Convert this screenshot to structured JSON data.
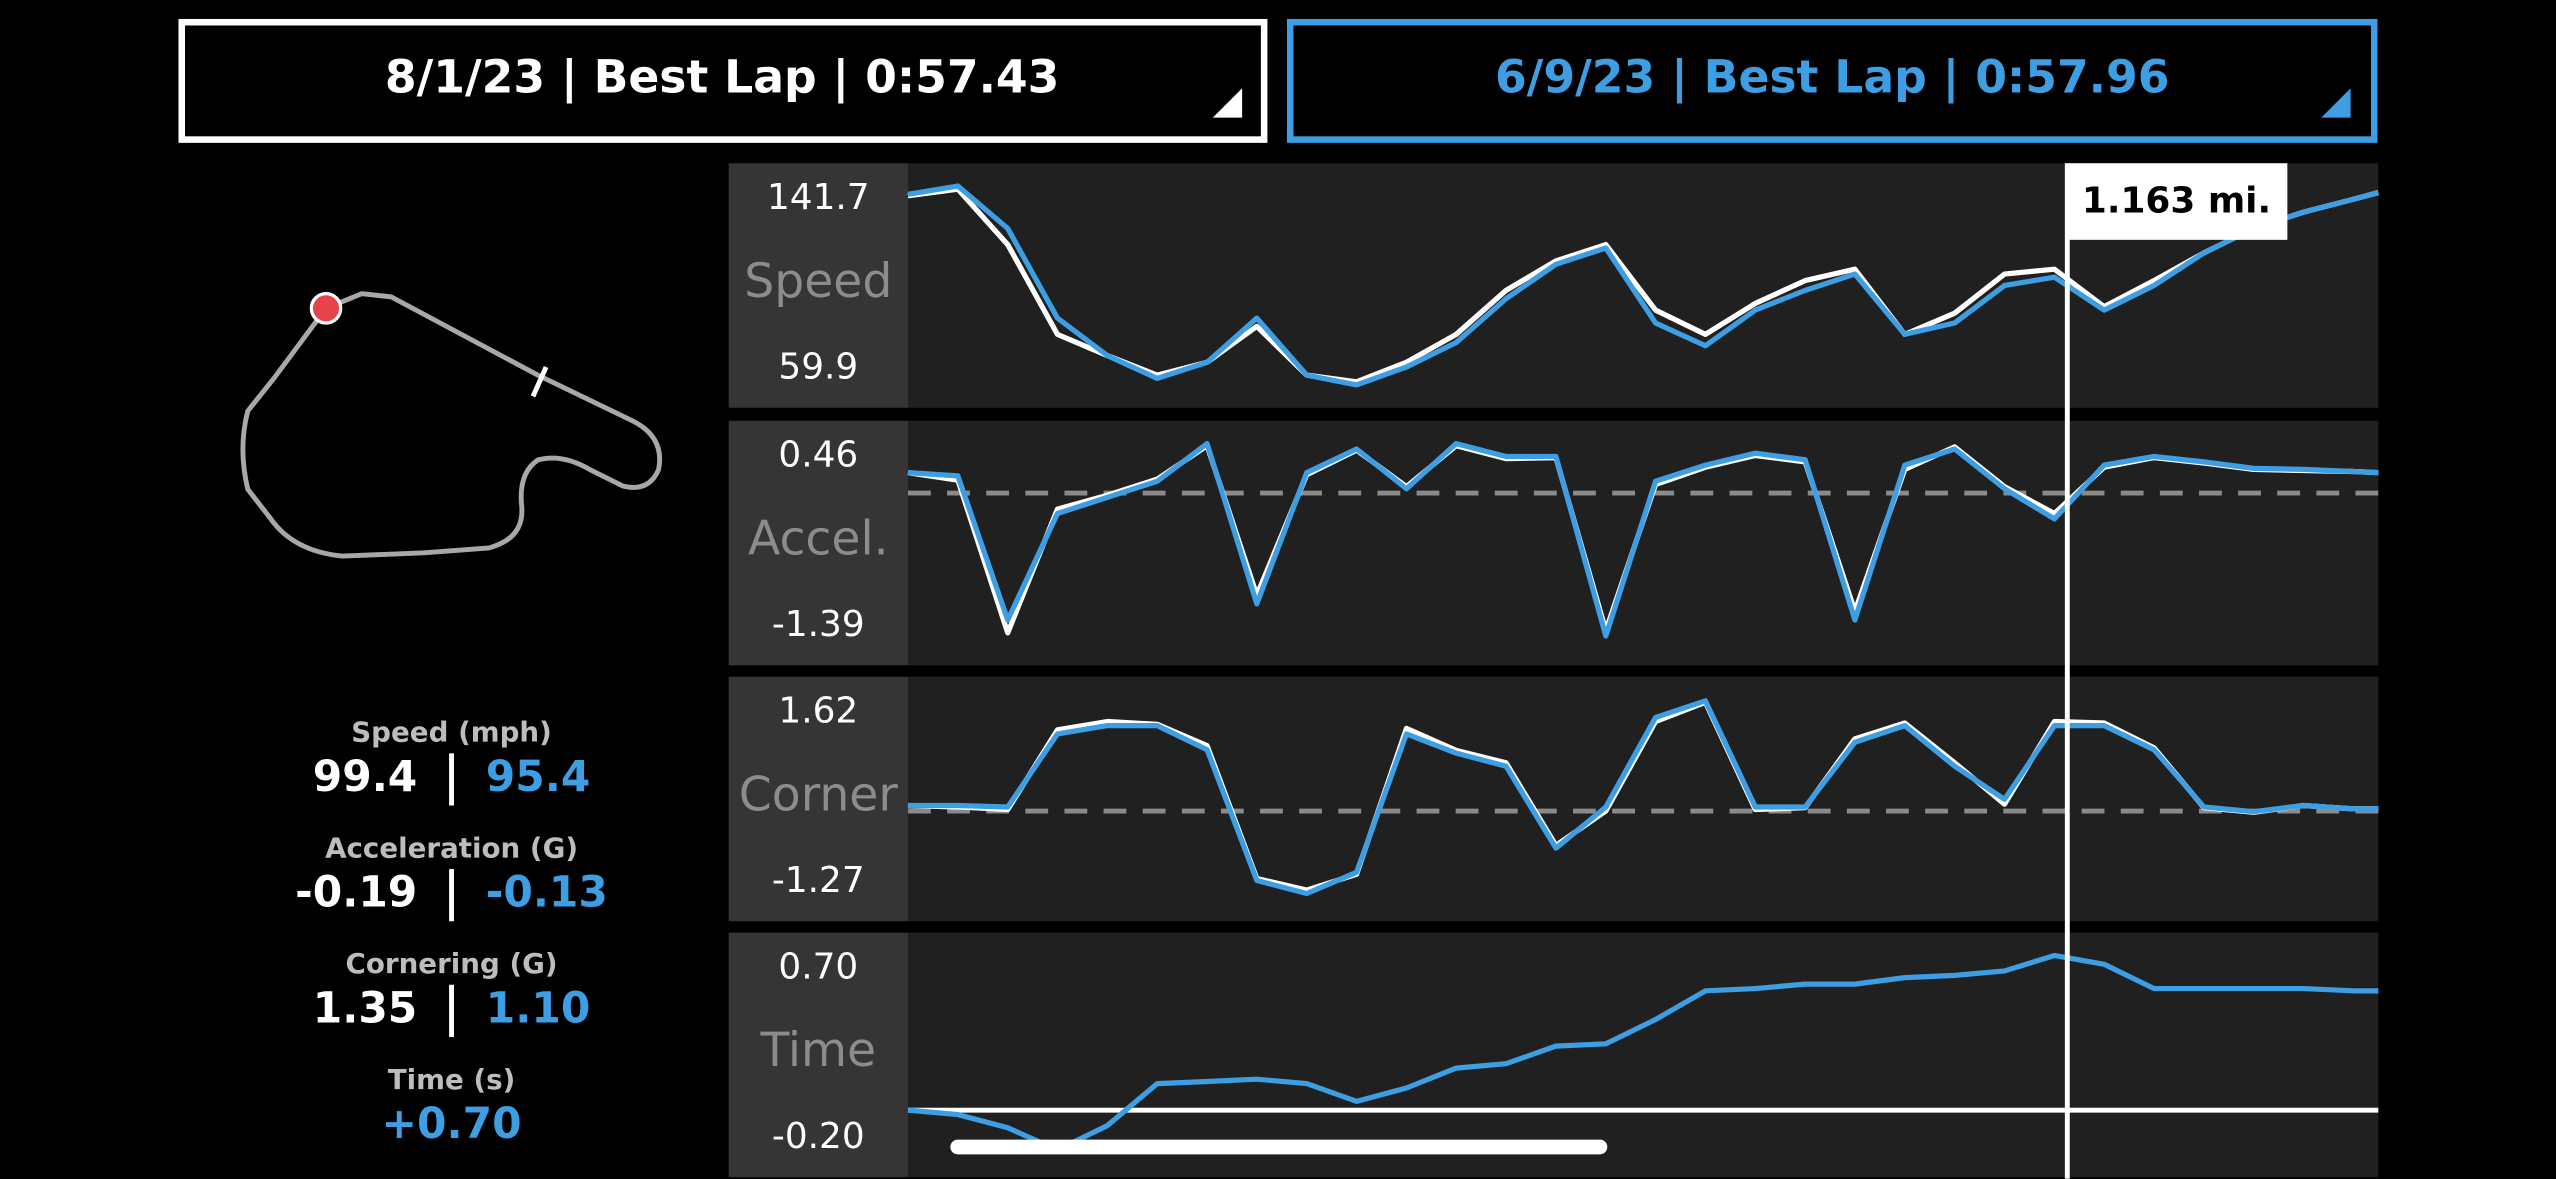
{
  "laps": [
    "8/1/23 | Best Lap | 0:57.43",
    "6/9/23 | Best Lap | 0:57.96"
  ],
  "stats": [
    {
      "label": "Speed (mph)",
      "values": [
        "99.4",
        "95.4"
      ]
    },
    {
      "label": "Acceleration (G)",
      "values": [
        "-0.19",
        "-0.13"
      ]
    },
    {
      "label": "Cornering (G)",
      "values": [
        "1.35",
        "1.10"
      ]
    },
    {
      "label": "Time (s)",
      "values": [
        "+0.70"
      ]
    }
  ],
  "cursor": {
    "value": 1.163,
    "label": "1.163 mi."
  },
  "chart_data": [
    {
      "type": "line",
      "ylabel": "Speed",
      "ylim": [
        59.9,
        141.7
      ],
      "yticks": [
        141.7,
        59.9
      ],
      "xlim": [
        0,
        1.475
      ],
      "x": [
        0,
        0.05,
        0.1,
        0.15,
        0.2,
        0.25,
        0.3,
        0.35,
        0.4,
        0.45,
        0.5,
        0.55,
        0.6,
        0.65,
        0.7,
        0.75,
        0.8,
        0.85,
        0.9,
        0.95,
        1.0,
        1.05,
        1.1,
        1.15,
        1.2,
        1.25,
        1.3,
        1.35,
        1.4,
        1.45,
        1.475
      ],
      "series": [
        {
          "color": "#ffffff",
          "values": [
            137.7,
            140.4,
            117.6,
            80.7,
            72.0,
            63.9,
            69.2,
            84.0,
            63.9,
            61.2,
            69.2,
            80.7,
            98.8,
            110.9,
            117.6,
            90.7,
            80.7,
            93.4,
            102.8,
            107.5,
            80.7,
            89.4,
            105.5,
            107.5,
            92.1,
            102.8,
            114.2,
            124.3,
            131.0,
            136.3,
            139.0
          ]
        },
        {
          "color": "#3d9ee3",
          "values": [
            138.3,
            141.7,
            124.3,
            87.4,
            72.0,
            62.6,
            69.2,
            87.4,
            63.9,
            59.9,
            67.3,
            77.3,
            95.4,
            109.5,
            116.2,
            85.4,
            76.0,
            90.7,
            98.8,
            105.5,
            80.7,
            85.4,
            100.8,
            104.2,
            90.7,
            100.8,
            114.2,
            124.3,
            131.0,
            136.3,
            139.0
          ]
        }
      ]
    },
    {
      "type": "line",
      "ylabel": "Accel.",
      "ylim": [
        -1.39,
        0.46
      ],
      "yticks": [
        0.46,
        -1.39
      ],
      "xlim": [
        0,
        1.475
      ],
      "zero_line": "dashed",
      "x": [
        0,
        0.05,
        0.1,
        0.15,
        0.2,
        0.25,
        0.3,
        0.35,
        0.4,
        0.45,
        0.5,
        0.55,
        0.6,
        0.65,
        0.7,
        0.75,
        0.8,
        0.85,
        0.9,
        0.95,
        1.0,
        1.05,
        1.1,
        1.15,
        1.2,
        1.25,
        1.3,
        1.35,
        1.4,
        1.45,
        1.475
      ],
      "series": [
        {
          "color": "#ffffff",
          "values": [
            0.19,
            0.12,
            -1.3,
            -0.15,
            -0.02,
            0.13,
            0.44,
            -0.95,
            0.17,
            0.4,
            0.06,
            0.44,
            0.32,
            0.33,
            -1.28,
            0.08,
            0.24,
            0.35,
            0.29,
            -1.1,
            0.22,
            0.43,
            0.06,
            -0.19,
            0.24,
            0.33,
            0.28,
            0.22,
            0.21,
            0.2,
            0.19
          ]
        },
        {
          "color": "#3d9ee3",
          "values": [
            0.19,
            0.16,
            -1.18,
            -0.19,
            -0.04,
            0.11,
            0.46,
            -1.03,
            0.19,
            0.41,
            0.04,
            0.46,
            0.34,
            0.34,
            -1.33,
            0.11,
            0.26,
            0.37,
            0.31,
            -1.18,
            0.26,
            0.41,
            0.04,
            -0.24,
            0.26,
            0.34,
            0.29,
            0.23,
            0.22,
            0.2,
            0.19
          ]
        }
      ]
    },
    {
      "type": "line",
      "ylabel": "Corner",
      "ylim": [
        -1.27,
        1.62
      ],
      "yticks": [
        1.62,
        -1.27
      ],
      "xlim": [
        0,
        1.475
      ],
      "zero_line": "dashed",
      "x": [
        0,
        0.05,
        0.1,
        0.15,
        0.2,
        0.25,
        0.3,
        0.35,
        0.4,
        0.45,
        0.5,
        0.55,
        0.6,
        0.65,
        0.7,
        0.75,
        0.8,
        0.85,
        0.9,
        0.95,
        1.0,
        1.05,
        1.1,
        1.15,
        1.2,
        1.25,
        1.3,
        1.35,
        1.4,
        1.45,
        1.475
      ],
      "series": [
        {
          "color": "#ffffff",
          "values": [
            0.08,
            0.06,
            0.02,
            1.18,
            1.3,
            1.26,
            0.95,
            -0.98,
            -1.15,
            -0.92,
            1.2,
            0.88,
            0.7,
            -0.5,
            0.0,
            1.3,
            1.58,
            0.02,
            0.05,
            1.05,
            1.28,
            0.7,
            0.1,
            1.3,
            1.28,
            0.92,
            0.05,
            -0.02,
            0.08,
            0.03,
            0.03
          ]
        },
        {
          "color": "#3d9ee3",
          "values": [
            0.08,
            0.08,
            0.06,
            1.12,
            1.24,
            1.24,
            0.89,
            -1.01,
            -1.2,
            -0.89,
            1.12,
            0.84,
            0.65,
            -0.54,
            0.06,
            1.36,
            1.6,
            0.06,
            0.06,
            1.0,
            1.24,
            0.65,
            0.17,
            1.24,
            1.24,
            0.89,
            0.06,
            -0.01,
            0.08,
            0.03,
            0.03
          ]
        }
      ]
    },
    {
      "type": "line",
      "ylabel": "Time",
      "ylim": [
        -0.2,
        0.7
      ],
      "yticks": [
        {
          "value": 0.7,
          "label": "0.70"
        },
        {
          "value": -0.2,
          "label": "-0.20"
        }
      ],
      "xlim": [
        0,
        1.475
      ],
      "zero_line": "solid",
      "x": [
        0,
        0.05,
        0.1,
        0.15,
        0.2,
        0.25,
        0.3,
        0.35,
        0.4,
        0.45,
        0.5,
        0.55,
        0.6,
        0.65,
        0.7,
        0.75,
        0.8,
        0.85,
        0.9,
        0.95,
        1.0,
        1.05,
        1.1,
        1.15,
        1.2,
        1.25,
        1.3,
        1.35,
        1.4,
        1.45,
        1.475
      ],
      "series": [
        {
          "color": "#3d9ee3",
          "values": [
            0.0,
            -0.02,
            -0.08,
            -0.18,
            -0.07,
            0.12,
            0.13,
            0.14,
            0.12,
            0.04,
            0.1,
            0.19,
            0.21,
            0.29,
            0.3,
            0.41,
            0.54,
            0.55,
            0.57,
            0.57,
            0.6,
            0.61,
            0.63,
            0.7,
            0.66,
            0.55,
            0.55,
            0.55,
            0.55,
            0.54,
            0.54
          ]
        }
      ]
    }
  ]
}
